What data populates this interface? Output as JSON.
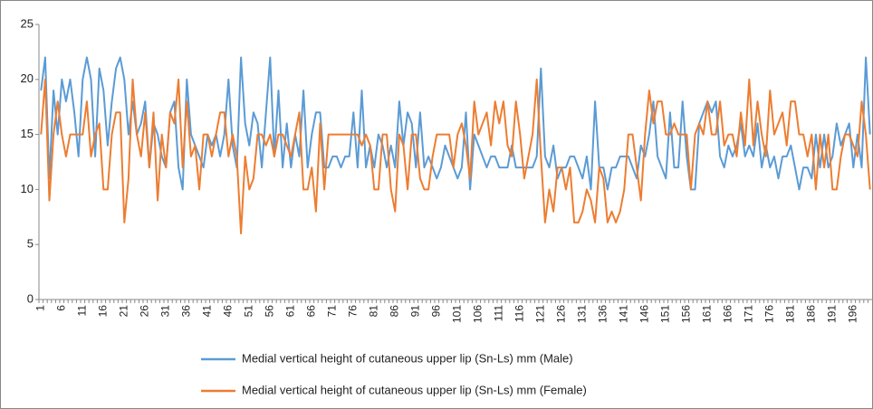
{
  "chart_data": {
    "type": "line",
    "categories": [
      "1",
      null,
      null,
      null,
      null,
      "6",
      null,
      null,
      null,
      null,
      "11",
      null,
      null,
      null,
      null,
      "16",
      null,
      null,
      null,
      null,
      "21",
      null,
      null,
      null,
      null,
      "26",
      null,
      null,
      null,
      null,
      "31",
      null,
      null,
      null,
      null,
      "36",
      null,
      null,
      null,
      null,
      "41",
      null,
      null,
      null,
      null,
      "46",
      null,
      null,
      null,
      null,
      "51",
      null,
      null,
      null,
      null,
      "56",
      null,
      null,
      null,
      null,
      "61",
      null,
      null,
      null,
      null,
      "66",
      null,
      null,
      null,
      null,
      "71",
      null,
      null,
      null,
      null,
      "76",
      null,
      null,
      null,
      null,
      "81",
      null,
      null,
      null,
      null,
      "86",
      null,
      null,
      null,
      null,
      "91",
      null,
      null,
      null,
      null,
      "96",
      null,
      null,
      null,
      null,
      "101",
      null,
      null,
      null,
      null,
      "106",
      null,
      null,
      null,
      null,
      "111",
      null,
      null,
      null,
      null,
      "116",
      null,
      null,
      null,
      null,
      "121",
      null,
      null,
      null,
      null,
      "126",
      null,
      null,
      null,
      null,
      "131",
      null,
      null,
      null,
      null,
      "136",
      null,
      null,
      null,
      null,
      "141",
      null,
      null,
      null,
      null,
      "146",
      null,
      null,
      null,
      null,
      "151",
      null,
      null,
      null,
      null,
      "156",
      null,
      null,
      null,
      null,
      "161",
      null,
      null,
      null,
      null,
      "166",
      null,
      null,
      null,
      null,
      "171",
      null,
      null,
      null,
      null,
      "176",
      null,
      null,
      null,
      null,
      "181",
      null,
      null,
      null,
      null,
      "186",
      null,
      null,
      null,
      null,
      "191",
      null,
      null,
      null,
      null,
      "196",
      null,
      null,
      null,
      null
    ],
    "series": [
      {
        "name": "Medial vertical height of cutaneous upper lip (Sn-Ls) mm (Male)",
        "color": "#5b9bd5",
        "values": [
          19,
          22,
          11,
          19,
          15,
          20,
          18,
          20,
          17,
          13,
          20,
          22,
          20,
          13,
          21,
          19,
          14,
          18,
          21,
          22,
          20,
          15,
          18,
          15,
          16,
          18,
          12,
          16,
          15,
          13,
          12,
          17,
          18,
          12,
          10,
          20,
          15,
          14,
          13,
          12,
          15,
          14,
          15,
          13,
          15,
          20,
          14,
          12,
          22,
          16,
          14,
          17,
          16,
          12,
          17,
          22,
          13,
          19,
          12,
          16,
          12,
          15,
          13,
          19,
          12,
          15,
          17,
          17,
          12,
          12,
          13,
          13,
          12,
          13,
          13,
          17,
          12,
          19,
          12,
          14,
          12,
          15,
          14,
          12,
          14,
          12,
          18,
          14,
          17,
          16,
          12,
          17,
          12,
          13,
          12,
          11,
          12,
          14,
          13,
          12,
          11,
          12,
          17,
          10,
          15,
          14,
          13,
          12,
          13,
          13,
          12,
          12,
          12,
          14,
          12,
          12,
          12,
          12,
          12,
          13,
          21,
          13,
          12,
          14,
          11,
          12,
          12,
          13,
          13,
          12,
          11,
          13,
          10,
          18,
          12,
          12,
          10,
          12,
          12,
          13,
          13,
          13,
          12,
          11,
          14,
          13,
          15,
          18,
          13,
          12,
          11,
          17,
          12,
          12,
          18,
          13,
          10,
          10,
          16,
          17,
          18,
          17,
          18,
          13,
          12,
          14,
          13,
          14,
          16,
          13,
          14,
          13,
          16,
          12,
          14,
          12,
          13,
          11,
          13,
          13,
          14,
          12,
          10,
          12,
          12,
          11,
          15,
          12,
          15,
          12,
          13,
          16,
          14,
          15,
          16,
          12,
          15,
          12,
          22,
          15
        ]
      },
      {
        "name": "Medial vertical height of cutaneous upper lip (Sn-Ls) mm (Female)",
        "color": "#ed7d31",
        "values": [
          15,
          20,
          9,
          15,
          18,
          15,
          13,
          15,
          15,
          15,
          15,
          18,
          13,
          15,
          16,
          10,
          10,
          15,
          17,
          17,
          7,
          11,
          20,
          15,
          13,
          17,
          12,
          17,
          9,
          15,
          12,
          17,
          16,
          20,
          12,
          18,
          13,
          14,
          10,
          15,
          15,
          13,
          15,
          17,
          17,
          13,
          15,
          13,
          6,
          13,
          10,
          11,
          15,
          15,
          14,
          15,
          13,
          15,
          15,
          14,
          13,
          15,
          17,
          10,
          10,
          12,
          8,
          16,
          10,
          15,
          15,
          15,
          15,
          15,
          15,
          15,
          15,
          14,
          15,
          14,
          10,
          10,
          15,
          15,
          10,
          8,
          15,
          14,
          10,
          15,
          15,
          11,
          10,
          10,
          13,
          15,
          15,
          15,
          15,
          12,
          15,
          16,
          14,
          11,
          18,
          15,
          16,
          17,
          14,
          18,
          16,
          18,
          14,
          13,
          18,
          15,
          11,
          13,
          15,
          20,
          13,
          7,
          10,
          8,
          12,
          12,
          10,
          12,
          7,
          7,
          8,
          10,
          9,
          7,
          12,
          11,
          7,
          8,
          7,
          8,
          10,
          15,
          15,
          12,
          9,
          15,
          19,
          16,
          18,
          18,
          15,
          15,
          16,
          15,
          15,
          15,
          10,
          15,
          16,
          15,
          18,
          15,
          15,
          18,
          14,
          15,
          15,
          13,
          17,
          14,
          20,
          14,
          18,
          15,
          13,
          19,
          15,
          16,
          17,
          14,
          18,
          18,
          15,
          15,
          13,
          15,
          10,
          15,
          12,
          15,
          10,
          10,
          13,
          15,
          15,
          14,
          13,
          18,
          15,
          10
        ]
      }
    ],
    "ylim": [
      0,
      25
    ],
    "yticks": [
      0,
      5,
      10,
      15,
      20,
      25
    ],
    "grid": false,
    "legend": "bottom"
  }
}
